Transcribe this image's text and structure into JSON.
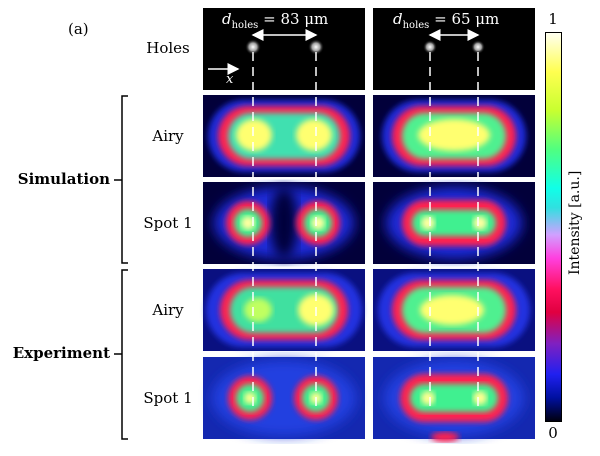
{
  "panel_tag": "(a)",
  "top_row": {
    "row_label": "Holes",
    "left_distance": "d",
    "left_sub": "holes",
    "left_value": "= 83 μm",
    "right_distance": "d",
    "right_sub": "holes",
    "right_value": "= 65 μm",
    "axis_label": "x"
  },
  "groups": [
    {
      "name": "Simulation",
      "rows": [
        "Airy",
        "Spot 1"
      ]
    },
    {
      "name": "Experiment",
      "rows": [
        "Airy",
        "Spot 1"
      ]
    }
  ],
  "colorbar": {
    "label": "Intensity [a.u.]",
    "max_tick": "1",
    "min_tick": "0"
  },
  "colors": {
    "bg_dark": "#02003a",
    "blue": "#1e2ad8",
    "magenta": "#d01060",
    "red": "#ff2050",
    "green": "#40f090",
    "yellow": "#f8ff70",
    "white": "#ffffe0"
  }
}
